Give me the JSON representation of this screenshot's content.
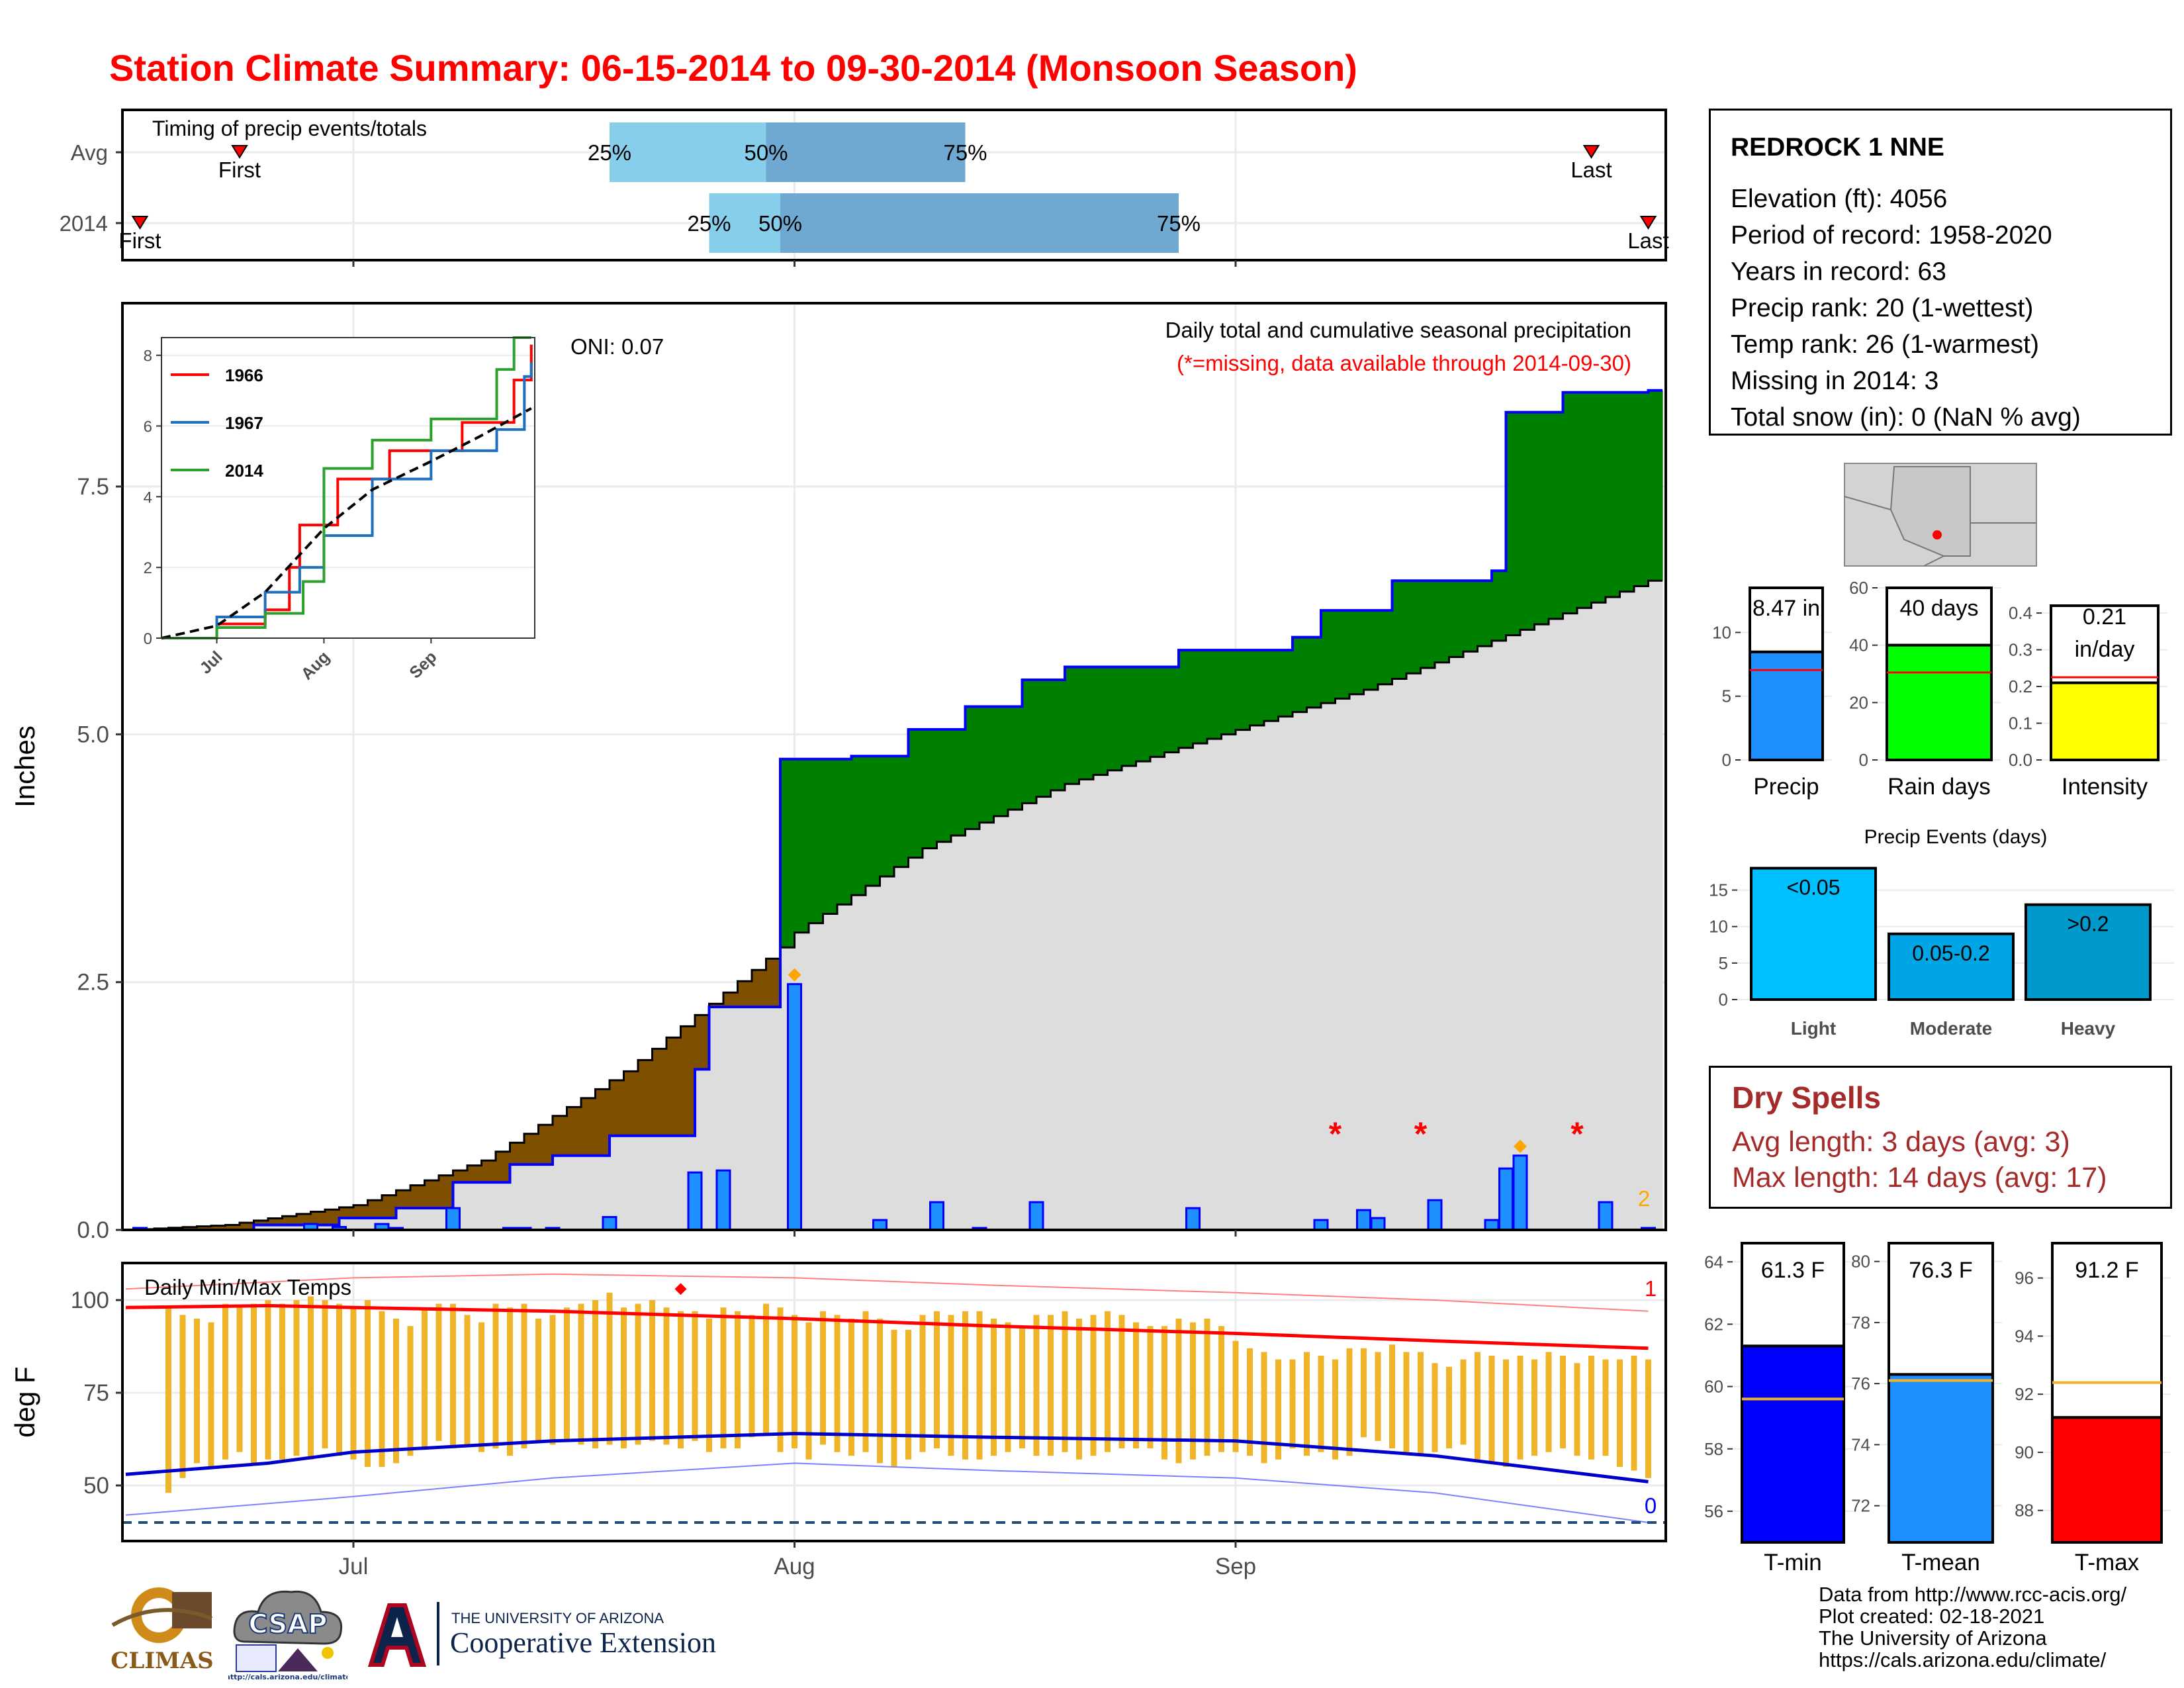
{
  "title": "Station Climate Summary: 06-15-2014 to 09-30-2014 (Monsoon Season)",
  "timing": {
    "label": "Timing of precip events/totals",
    "rows": [
      "Avg",
      "2014"
    ],
    "marker_first": "First",
    "marker_last": "Last",
    "pct_25": "25%",
    "pct_50": "50%",
    "pct_75": "75%",
    "avg": {
      "first": "2014-06-23",
      "p25": "2014-07-19",
      "p50": "2014-07-30",
      "p75": "2014-08-13",
      "last": "2014-09-26"
    },
    "y2014": {
      "first": "2014-06-16",
      "p25": "2014-07-26",
      "p50": "2014-07-31",
      "p75": "2014-08-28",
      "last": "2014-09-30"
    }
  },
  "station": {
    "name": "REDROCK 1 NNE",
    "lines": [
      "Elevation (ft): 4056",
      "Period of record: 1958-2020",
      "Years in record: 63",
      "Precip rank: 20 (1-wettest)",
      "Temp rank: 26 (1-warmest)",
      "Missing in 2014: 3",
      "Total snow (in): 0 (NaN % avg)"
    ]
  },
  "main_chart": {
    "legend_title": "Daily total and cumulative seasonal precipitation",
    "legend_note": "(*=missing, data available through 2014-09-30)",
    "oni": "ONI: 0.07",
    "ylabel": "Inches",
    "yticks": [
      "0.0",
      "2.5",
      "5.0",
      "7.5"
    ],
    "xticks": [
      "Jul",
      "Aug",
      "Sep"
    ],
    "corner_count": "2",
    "colors": {
      "above_avg": "#008000",
      "below_avg": "#7f4f00",
      "avg_fill": "#dddddd",
      "daily_bar": "#1e90ff",
      "line": "#0000ff",
      "missing": "#ff0000",
      "extreme": "#ffa500"
    }
  },
  "inset": {
    "yticks": [
      "0",
      "2",
      "4",
      "6",
      "8"
    ],
    "xticks": [
      "Jul",
      "Aug",
      "Sep"
    ],
    "legend": [
      {
        "name": "1966",
        "color": "#ff0000"
      },
      {
        "name": "1967",
        "color": "#1f6fbf"
      },
      {
        "name": "2014",
        "color": "#2ca02c"
      }
    ]
  },
  "temp_chart": {
    "label": "Daily Min/Max Temps",
    "ylabel": "deg F",
    "yticks": [
      "50",
      "75",
      "100"
    ],
    "xticks": [
      "Jul",
      "Aug",
      "Sep"
    ],
    "count_high": "1",
    "count_low": "0"
  },
  "summary_bars": [
    {
      "label": "Precip",
      "value_text": "8.47 in",
      "yticks": [
        "0",
        "5",
        "10"
      ],
      "color": "#1e90ff"
    },
    {
      "label": "Rain days",
      "value_text": "40 days",
      "yticks": [
        "0",
        "20",
        "40",
        "60"
      ],
      "color": "#00ff00"
    },
    {
      "label": "Intensity",
      "value_text": "0.21 in/day",
      "value_line1": "0.21",
      "value_line2": "in/day",
      "yticks": [
        "0.0",
        "0.1",
        "0.2",
        "0.3",
        "0.4"
      ],
      "color": "#ffff00"
    }
  ],
  "events": {
    "title": "Precip Events (days)",
    "yticks": [
      "0",
      "5",
      "10",
      "15"
    ],
    "bars": [
      {
        "label": "Light",
        "text": "<0.05",
        "value": 18,
        "color": "#00bfff"
      },
      {
        "label": "Moderate",
        "text": "0.05-0.2",
        "value": 9,
        "color": "#00a5e6"
      },
      {
        "label": "Heavy",
        "text": ">0.2",
        "value": 13,
        "color": "#0099cc"
      }
    ]
  },
  "dry_spells": {
    "title": "Dry Spells",
    "avg": "Avg length: 3 days (avg: 3)",
    "max": "Max length: 14 days (avg: 17)"
  },
  "temp_bars": [
    {
      "label": "T-min",
      "value_text": "61.3 F",
      "value": 61.3,
      "avg": 59.6,
      "yticks": [
        "56",
        "58",
        "60",
        "62",
        "64"
      ],
      "color": "#0000ff"
    },
    {
      "label": "T-mean",
      "value_text": "76.3 F",
      "value": 76.3,
      "avg": 76.1,
      "yticks": [
        "72",
        "74",
        "76",
        "78",
        "80"
      ],
      "color": "#1e90ff"
    },
    {
      "label": "T-max",
      "value_text": "91.2 F",
      "value": 91.2,
      "avg": 92.4,
      "yticks": [
        "88",
        "90",
        "92",
        "94",
        "96"
      ],
      "color": "#ff0000"
    }
  ],
  "chart_data": [
    {
      "type": "area",
      "title": "Daily total and cumulative seasonal precipitation",
      "ylabel": "Inches",
      "ylim": [
        0,
        9.0
      ],
      "x_start": "2014-06-15",
      "x_end": "2014-09-30",
      "series": [
        {
          "name": "2014 cumulative",
          "x": [
            "2014-06-15",
            "2014-06-24",
            "2014-06-30",
            "2014-07-04",
            "2014-07-08",
            "2014-07-12",
            "2014-07-15",
            "2014-07-19",
            "2014-07-24",
            "2014-07-25",
            "2014-07-26",
            "2014-07-31",
            "2014-08-05",
            "2014-08-09",
            "2014-08-13",
            "2014-08-17",
            "2014-08-20",
            "2014-08-28",
            "2014-09-05",
            "2014-09-07",
            "2014-09-12",
            "2014-09-19",
            "2014-09-20",
            "2014-09-24",
            "2014-09-30"
          ],
          "values": [
            0.0,
            0.05,
            0.12,
            0.22,
            0.48,
            0.66,
            0.75,
            0.95,
            0.95,
            1.62,
            2.25,
            4.75,
            4.78,
            5.05,
            5.28,
            5.55,
            5.68,
            5.85,
            5.98,
            6.25,
            6.55,
            6.65,
            8.25,
            8.45,
            8.47
          ]
        },
        {
          "name": "Average cumulative",
          "x": [
            "2014-06-15",
            "2014-06-22",
            "2014-07-01",
            "2014-07-10",
            "2014-07-20",
            "2014-07-31",
            "2014-08-01",
            "2014-08-10",
            "2014-08-20",
            "2014-08-31",
            "2014-09-10",
            "2014-09-20",
            "2014-09-30"
          ],
          "values": [
            0.0,
            0.05,
            0.25,
            0.7,
            1.6,
            2.85,
            3.0,
            3.85,
            4.5,
            5.0,
            5.45,
            6.0,
            6.55
          ]
        }
      ],
      "daily_bars": {
        "x": [
          "2014-06-16",
          "2014-06-28",
          "2014-06-30",
          "2014-07-03",
          "2014-07-04",
          "2014-07-08",
          "2014-07-12",
          "2014-07-13",
          "2014-07-15",
          "2014-07-19",
          "2014-07-25",
          "2014-07-27",
          "2014-08-01",
          "2014-08-07",
          "2014-08-11",
          "2014-08-14",
          "2014-08-18",
          "2014-08-29",
          "2014-09-07",
          "2014-09-10",
          "2014-09-11",
          "2014-09-15",
          "2014-09-19",
          "2014-09-20",
          "2014-09-21",
          "2014-09-27",
          "2014-09-30"
        ],
        "values": [
          0.02,
          0.06,
          0.03,
          0.06,
          0.02,
          0.22,
          0.02,
          0.02,
          0.02,
          0.13,
          0.58,
          0.6,
          2.48,
          0.1,
          0.28,
          0.02,
          0.28,
          0.22,
          0.1,
          0.2,
          0.12,
          0.3,
          0.1,
          0.62,
          0.75,
          0.28,
          0.02
        ]
      },
      "missing_days": [
        "2014-09-08",
        "2014-09-14",
        "2014-09-25"
      ],
      "record_days": [
        "2014-08-01",
        "2014-09-21"
      ]
    },
    {
      "type": "line",
      "title": "Inset cumulative precipitation comparison",
      "ylim": [
        0,
        8.5
      ],
      "series": [
        {
          "name": "1966",
          "x": [
            "2014-06-15",
            "2014-07-01",
            "2014-07-15",
            "2014-07-22",
            "2014-07-25",
            "2014-08-05",
            "2014-08-20",
            "2014-09-10",
            "2014-09-25",
            "2014-09-30"
          ],
          "values": [
            0,
            0.4,
            0.8,
            2.0,
            3.2,
            4.5,
            5.3,
            6.1,
            7.3,
            8.3
          ]
        },
        {
          "name": "1967",
          "x": [
            "2014-06-15",
            "2014-07-01",
            "2014-07-15",
            "2014-07-25",
            "2014-08-01",
            "2014-08-15",
            "2014-09-01",
            "2014-09-20",
            "2014-09-28",
            "2014-09-30"
          ],
          "values": [
            0,
            0.6,
            1.3,
            2.0,
            2.9,
            4.5,
            5.3,
            5.9,
            7.4,
            7.8
          ]
        },
        {
          "name": "2014",
          "x": [
            "2014-06-15",
            "2014-07-01",
            "2014-07-15",
            "2014-07-26",
            "2014-08-01",
            "2014-08-15",
            "2014-09-01",
            "2014-09-20",
            "2014-09-25",
            "2014-09-30"
          ],
          "values": [
            0,
            0.3,
            0.7,
            1.6,
            4.8,
            5.6,
            6.2,
            7.6,
            8.5,
            8.5
          ]
        },
        {
          "name": "Average",
          "x": [
            "2014-06-15",
            "2014-07-01",
            "2014-07-15",
            "2014-08-01",
            "2014-08-15",
            "2014-09-01",
            "2014-09-15",
            "2014-09-30"
          ],
          "values": [
            0,
            0.35,
            1.3,
            3.1,
            4.2,
            5.0,
            5.7,
            6.5
          ]
        }
      ]
    },
    {
      "type": "bar",
      "title": "Daily Min/Max Temps",
      "ylabel": "deg F",
      "ylim": [
        35,
        110
      ],
      "series": [
        {
          "name": "Daily max",
          "x_start": "2014-06-18",
          "x_end": "2014-09-30",
          "values": [
            98,
            96,
            95,
            94,
            99,
            98,
            99,
            100,
            99,
            100,
            101,
            100,
            99,
            98,
            100,
            97,
            95,
            93,
            98,
            99,
            99,
            96,
            94,
            99,
            98,
            99,
            95,
            96,
            98,
            99,
            100,
            102,
            98,
            99,
            100,
            98,
            97,
            97,
            95,
            98,
            97,
            96,
            99,
            98,
            96,
            94,
            97,
            96,
            95,
            97,
            95,
            92,
            92,
            96,
            97,
            96,
            97,
            97,
            95,
            94,
            93,
            96,
            96,
            97,
            95,
            96,
            97,
            96,
            94,
            93,
            93,
            95,
            94,
            95,
            93,
            89,
            87,
            86,
            84,
            84,
            86,
            85,
            84,
            87,
            87,
            86,
            88,
            86,
            86,
            83,
            82,
            84,
            86,
            85,
            84,
            85,
            84,
            86,
            85,
            83,
            85,
            84,
            84,
            85,
            84
          ]
        },
        {
          "name": "Daily min",
          "x_start": "2014-06-18",
          "x_end": "2014-09-30",
          "values": [
            48,
            52,
            56,
            55,
            57,
            59,
            56,
            57,
            57,
            58,
            57,
            60,
            58,
            57,
            55,
            55,
            56,
            58,
            60,
            62,
            60,
            61,
            59,
            60,
            58,
            60,
            62,
            61,
            62,
            61,
            60,
            61,
            60,
            61,
            62,
            61,
            60,
            62,
            59,
            60,
            60,
            63,
            64,
            59,
            60,
            57,
            61,
            59,
            58,
            59,
            56,
            55,
            57,
            59,
            60,
            58,
            57,
            57,
            58,
            59,
            60,
            58,
            58,
            59,
            57,
            58,
            59,
            60,
            60,
            60,
            57,
            56,
            57,
            58,
            59,
            59,
            58,
            56,
            57,
            60,
            58,
            59,
            57,
            58,
            63,
            62,
            60,
            59,
            58,
            59,
            60,
            61,
            57,
            56,
            55,
            57,
            58,
            59,
            60,
            58,
            57,
            58,
            55,
            54,
            52
          ]
        },
        {
          "name": "Avg max",
          "x": [
            "2014-06-15",
            "2014-06-25",
            "2014-07-01",
            "2014-07-15",
            "2014-08-01",
            "2014-08-15",
            "2014-09-01",
            "2014-09-15",
            "2014-09-30"
          ],
          "values": [
            98,
            98.5,
            98,
            97,
            95,
            93,
            91,
            89,
            87
          ]
        },
        {
          "name": "Avg min",
          "x": [
            "2014-06-15",
            "2014-06-25",
            "2014-07-01",
            "2014-07-15",
            "2014-08-01",
            "2014-08-15",
            "2014-09-01",
            "2014-09-15",
            "2014-09-30"
          ],
          "values": [
            53,
            56,
            59,
            62,
            64,
            63,
            62,
            58,
            51
          ]
        },
        {
          "name": "Record high",
          "x": [
            "2014-06-15",
            "2014-07-01",
            "2014-07-15",
            "2014-08-01",
            "2014-08-15",
            "2014-09-01",
            "2014-09-15",
            "2014-09-30"
          ],
          "values": [
            103,
            106,
            107,
            106,
            104,
            102,
            100,
            97
          ]
        },
        {
          "name": "Record low",
          "x": [
            "2014-06-15",
            "2014-07-01",
            "2014-07-15",
            "2014-08-01",
            "2014-08-15",
            "2014-09-01",
            "2014-09-15",
            "2014-09-30"
          ],
          "values": [
            42,
            47,
            52,
            56,
            54,
            52,
            48,
            40
          ]
        }
      ],
      "freezing_line": 40,
      "record_high_day": "2014-07-24"
    },
    {
      "type": "bar",
      "title": "Precip Events (days)",
      "categories": [
        "Light",
        "Moderate",
        "Heavy"
      ],
      "values": [
        18,
        9,
        13
      ],
      "ylim": [
        0,
        18
      ]
    }
  ]
}
